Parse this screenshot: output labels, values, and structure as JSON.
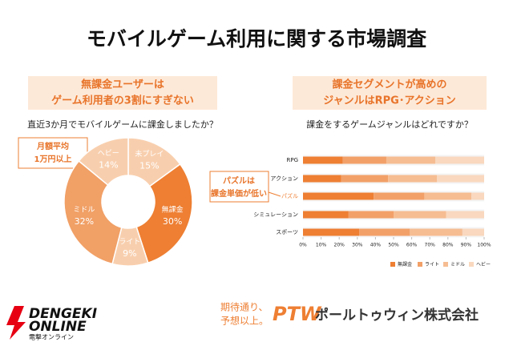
{
  "title": "モバイルゲーム利用に関する市場調査",
  "chart_data": [
    {
      "type": "pie",
      "heading": [
        "無課金ユーザーは",
        "ゲーム利用者の3割にすぎない"
      ],
      "question": "直近3か月でモバイルゲームに課金しましたか？",
      "categories": [
        "未プレイ",
        "無課金",
        "ライト",
        "ミドル",
        "ヘビー"
      ],
      "values": [
        15,
        30,
        9,
        32,
        14
      ],
      "value_labels": [
        "15%",
        "30%",
        "9%",
        "32%",
        "14%"
      ],
      "colors": [
        "#f8cfae",
        "#ee7f33",
        "#f8cfae",
        "#f1a066",
        "#f8cfae"
      ],
      "annotation": [
        "月額平均",
        "1万円以上"
      ]
    },
    {
      "type": "stacked-bar",
      "heading": [
        "課金セグメントが高めの",
        "ジャンルはRPG･アクション"
      ],
      "question": "課金をするゲームジャンルはどれですか？",
      "categories": [
        "RPG",
        "アクション",
        "パズル",
        "シミュレーション",
        "スポーツ"
      ],
      "series": [
        {
          "name": "無課金",
          "color": "#ee7f33",
          "values": [
            22,
            21,
            39,
            25,
            31
          ]
        },
        {
          "name": "ライト",
          "color": "#f2a068",
          "values": [
            24,
            26,
            28,
            25,
            28
          ]
        },
        {
          "name": "ミドル",
          "color": "#f6bd92",
          "values": [
            27,
            27,
            26,
            29,
            29
          ]
        },
        {
          "name": "ヘビー",
          "color": "#f9d8bf",
          "values": [
            27,
            26,
            7,
            21,
            12
          ]
        }
      ],
      "xlim": [
        0,
        100
      ],
      "xticks": [
        {
          "value": 0,
          "label": "0%"
        },
        {
          "value": 10,
          "label": "10%"
        },
        {
          "value": 20,
          "label": "20%"
        },
        {
          "value": 30,
          "label": "30%"
        },
        {
          "value": 40,
          "label": "40%"
        },
        {
          "value": 50,
          "label": "50%"
        },
        {
          "value": 60,
          "label": "60%"
        },
        {
          "value": 70,
          "label": "70%"
        },
        {
          "value": 80,
          "label": "80%"
        },
        {
          "value": 90,
          "label": "90%"
        },
        {
          "value": 100,
          "label": "100%"
        }
      ],
      "annotation": [
        "パズルは",
        "課金単価が低い"
      ]
    }
  ],
  "footer": {
    "logo": [
      "DENGEKI",
      "ONLINE",
      "電撃オンライン"
    ],
    "tagline": [
      "期待通り、",
      "予想以上。"
    ],
    "brand": "PTW",
    "company": "ポールトゥウィン株式会社"
  }
}
